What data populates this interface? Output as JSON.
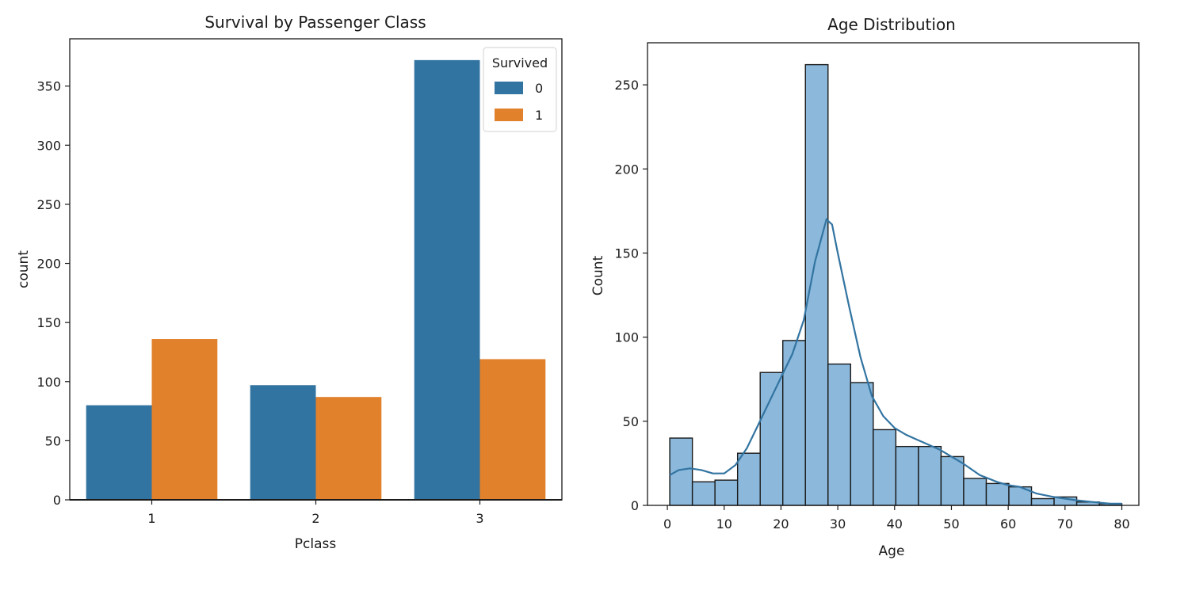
{
  "chart_data": [
    {
      "type": "bar",
      "title": "Survival by Passenger Class",
      "xlabel": "Pclass",
      "ylabel": "count",
      "categories": [
        "1",
        "2",
        "3"
      ],
      "ylim": [
        0,
        390
      ],
      "yticks": [
        0,
        50,
        100,
        150,
        200,
        250,
        300,
        350
      ],
      "legend": {
        "title": "Survived",
        "placement": "top-right"
      },
      "series": [
        {
          "name": "0",
          "color": "#3274a1",
          "values": [
            80,
            97,
            372
          ]
        },
        {
          "name": "1",
          "color": "#e1812c",
          "values": [
            136,
            87,
            119
          ]
        }
      ]
    },
    {
      "type": "histogram",
      "title": "Age Distribution",
      "xlabel": "Age",
      "ylabel": "Count",
      "xlim": [
        -3.5,
        83
      ],
      "ylim": [
        0,
        275
      ],
      "xticks": [
        0,
        10,
        20,
        30,
        40,
        50,
        60,
        70,
        80
      ],
      "yticks": [
        0,
        50,
        100,
        150,
        200,
        250
      ],
      "bar_color": "#8bb8db",
      "kde_color": "#3274a1",
      "bins": [
        {
          "x0": 0.42,
          "x1": 4.4,
          "count": 40
        },
        {
          "x0": 4.4,
          "x1": 8.38,
          "count": 14
        },
        {
          "x0": 8.38,
          "x1": 12.36,
          "count": 15
        },
        {
          "x0": 12.36,
          "x1": 16.34,
          "count": 31
        },
        {
          "x0": 16.34,
          "x1": 20.32,
          "count": 79
        },
        {
          "x0": 20.32,
          "x1": 24.3,
          "count": 98
        },
        {
          "x0": 24.3,
          "x1": 28.28,
          "count": 262
        },
        {
          "x0": 28.28,
          "x1": 32.26,
          "count": 84
        },
        {
          "x0": 32.26,
          "x1": 36.24,
          "count": 73
        },
        {
          "x0": 36.24,
          "x1": 40.22,
          "count": 45
        },
        {
          "x0": 40.22,
          "x1": 44.2,
          "count": 35
        },
        {
          "x0": 44.2,
          "x1": 48.18,
          "count": 35
        },
        {
          "x0": 48.18,
          "x1": 52.16,
          "count": 29
        },
        {
          "x0": 52.16,
          "x1": 56.14,
          "count": 16
        },
        {
          "x0": 56.14,
          "x1": 60.12,
          "count": 13
        },
        {
          "x0": 60.12,
          "x1": 64.1,
          "count": 11
        },
        {
          "x0": 64.1,
          "x1": 68.08,
          "count": 4
        },
        {
          "x0": 68.08,
          "x1": 72.06,
          "count": 5
        },
        {
          "x0": 72.06,
          "x1": 76.04,
          "count": 2
        },
        {
          "x0": 76.04,
          "x1": 80.0,
          "count": 1
        }
      ],
      "kde": [
        [
          0.4,
          18
        ],
        [
          2,
          21
        ],
        [
          4,
          22
        ],
        [
          6,
          21
        ],
        [
          8,
          19
        ],
        [
          10,
          19
        ],
        [
          12,
          24
        ],
        [
          14,
          34
        ],
        [
          16,
          48
        ],
        [
          18,
          62
        ],
        [
          20,
          76
        ],
        [
          22,
          90
        ],
        [
          24,
          110
        ],
        [
          26,
          145
        ],
        [
          28,
          170
        ],
        [
          29,
          167
        ],
        [
          30,
          150
        ],
        [
          32,
          118
        ],
        [
          34,
          88
        ],
        [
          36,
          65
        ],
        [
          38,
          53
        ],
        [
          40,
          46
        ],
        [
          42,
          42
        ],
        [
          44,
          39
        ],
        [
          46,
          36
        ],
        [
          48,
          33
        ],
        [
          50,
          29
        ],
        [
          52,
          25
        ],
        [
          55,
          18
        ],
        [
          58,
          14
        ],
        [
          60,
          12
        ],
        [
          62,
          11
        ],
        [
          65,
          7
        ],
        [
          68,
          5
        ],
        [
          70,
          4
        ],
        [
          72,
          3
        ],
        [
          75,
          2
        ],
        [
          78,
          1
        ],
        [
          80,
          1
        ]
      ]
    }
  ]
}
